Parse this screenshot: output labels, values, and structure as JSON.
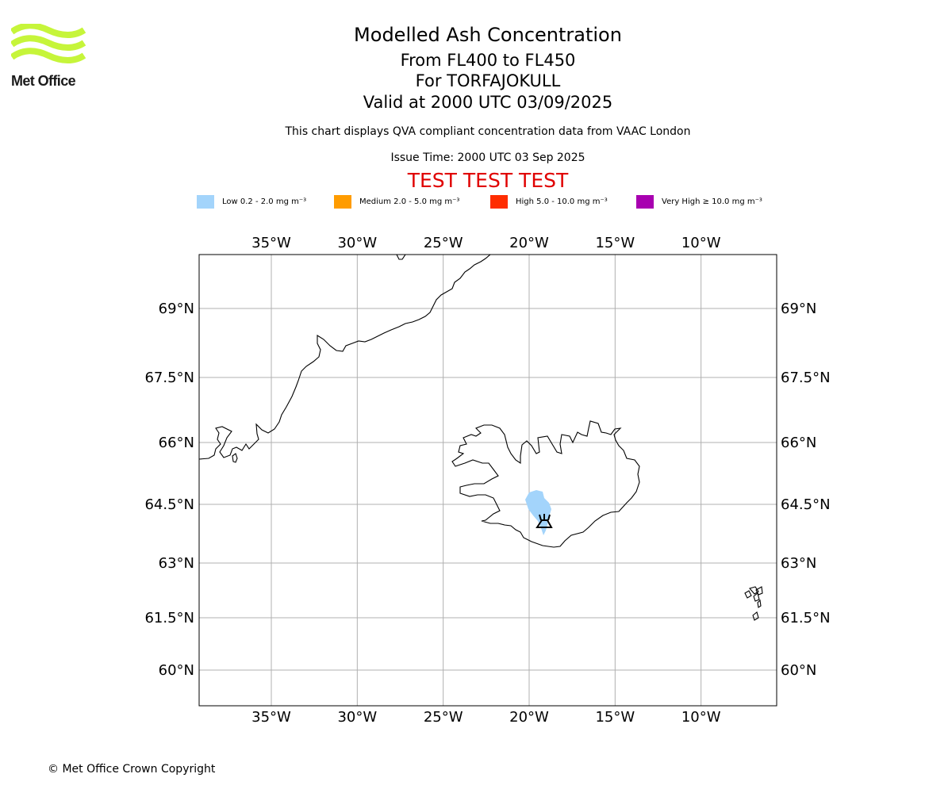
{
  "logo": {
    "text": "Met Office",
    "color": "#c6f53a"
  },
  "header": {
    "title": "Modelled Ash Concentration",
    "flight_levels": "From FL400 to FL450",
    "volcano": "For TORFAJOKULL",
    "valid_time": "Valid at 2000 UTC 03/09/2025",
    "description": "This chart displays QVA compliant concentration data from VAAC London",
    "issue_time": "Issue Time: 2000 UTC 03 Sep 2025",
    "test_banner": "TEST TEST TEST"
  },
  "legend": [
    {
      "label": "Low 0.2 - 2.0 mg m⁻³",
      "color": "#a3d4fb"
    },
    {
      "label": "Medium 2.0 - 5.0 mg m⁻³",
      "color": "#ff9c00"
    },
    {
      "label": "High 5.0 - 10.0 mg m⁻³",
      "color": "#ff2d00"
    },
    {
      "label": "Very High ≥ 10.0 mg m⁻³",
      "color": "#a800b0"
    }
  ],
  "map": {
    "extent": {
      "lon": [
        -39.2,
        -5.6
      ],
      "lat": [
        59.3,
        70.2
      ]
    },
    "lon_ticks": [
      {
        "value": -35,
        "label": "35°W"
      },
      {
        "value": -30,
        "label": "30°W"
      },
      {
        "value": -25,
        "label": "25°W"
      },
      {
        "value": -20,
        "label": "20°W"
      },
      {
        "value": -15,
        "label": "15°W"
      },
      {
        "value": -10,
        "label": "10°W"
      }
    ],
    "lat_ticks": [
      {
        "value": 69,
        "label": "69°N"
      },
      {
        "value": 67.5,
        "label": "67.5°N"
      },
      {
        "value": 66,
        "label": "66°N"
      },
      {
        "value": 64.5,
        "label": "64.5°N"
      },
      {
        "value": 63,
        "label": "63°N"
      },
      {
        "value": 61.5,
        "label": "61.5°N"
      },
      {
        "value": 60,
        "label": "60°N"
      }
    ],
    "grid": true,
    "volcano_marker": {
      "name": "TORFAJOKULL",
      "icon": "volcano-icon"
    },
    "ash_area": {
      "level": "Low",
      "color": "#a3d4fb"
    }
  },
  "copyright": "© Met Office Crown Copyright"
}
